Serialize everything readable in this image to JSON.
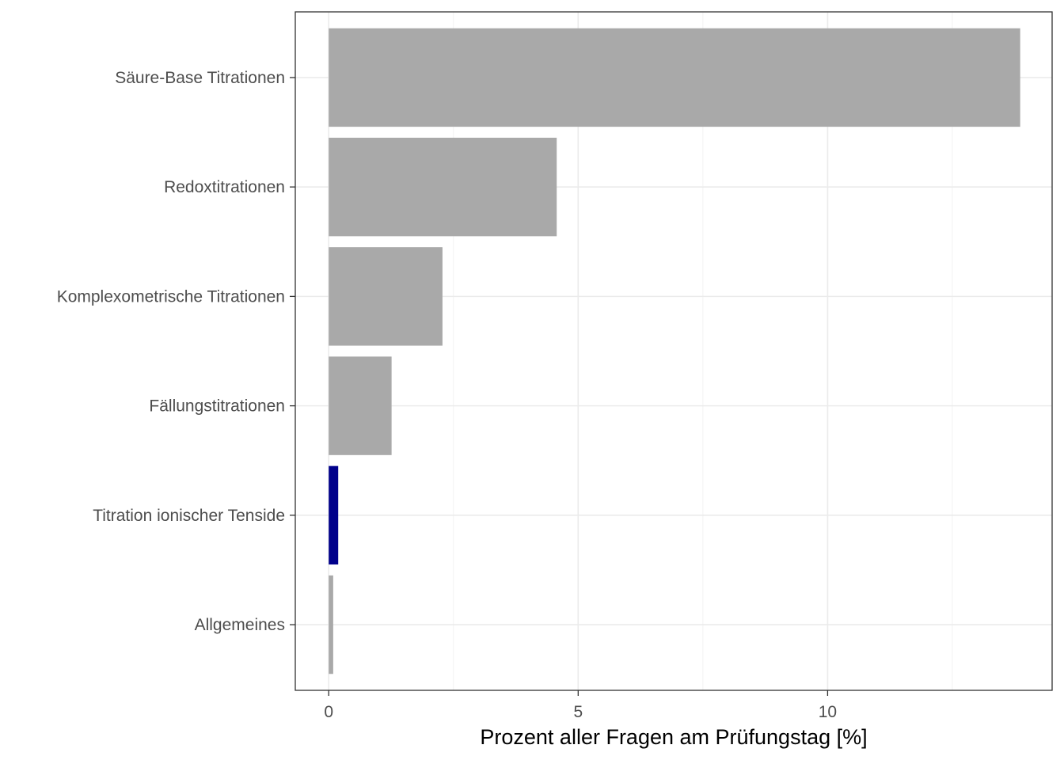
{
  "chart_data": {
    "type": "bar",
    "orientation": "horizontal",
    "categories": [
      "Säure-Base Titrationen",
      "Redoxtitrationen",
      "Komplexometrische Titrationen",
      "Fällungstitrationen",
      "Titration ionischer Tenside",
      "Allgemeines"
    ],
    "values": [
      13.86,
      4.57,
      2.28,
      1.26,
      0.19,
      0.09
    ],
    "highlight": [
      false,
      false,
      false,
      false,
      true,
      false
    ],
    "xlabel": "Prozent aller Fragen am Prüfungstag [%]",
    "ylabel": "",
    "xlim": [
      -0.67,
      14.5
    ],
    "xticks": [
      0,
      5,
      10
    ],
    "xtick_labels": [
      "0",
      "5",
      "10"
    ],
    "grid": true,
    "colors": {
      "bar": "#a9a9a9",
      "highlight": "#00008b",
      "grid_major": "#ebebeb",
      "grid_minor": "#f2f2f2",
      "panel_border": "#333333",
      "tick_text": "#4d4d4d",
      "axis_title": "#000000"
    }
  }
}
